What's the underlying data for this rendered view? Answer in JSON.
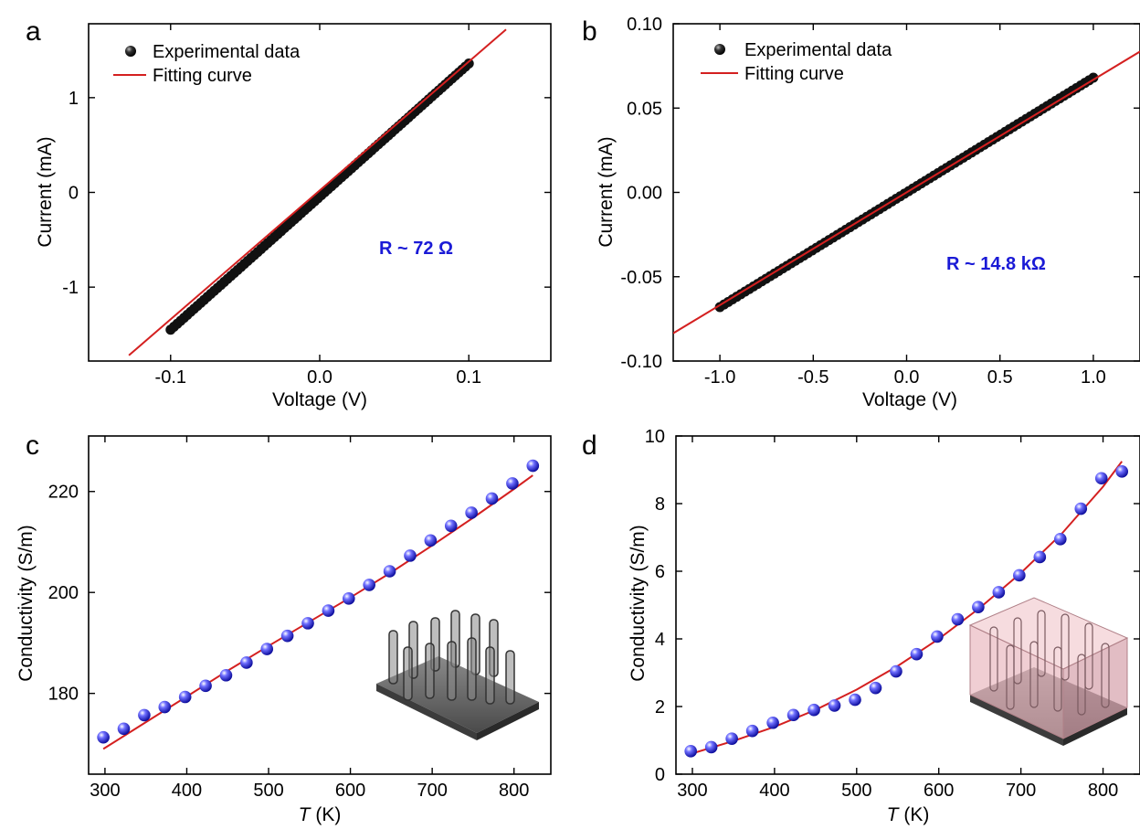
{
  "colors": {
    "fit_line": "#d42020",
    "exp_marker": "#111111",
    "sphere_marker": "#2222ee",
    "annotation": "#1a1ad6",
    "inset_substrate": "#5a5a5a",
    "inset_matrix": "#e8b4bc"
  },
  "chart_data": [
    {
      "panel": "a",
      "type": "scatter",
      "xlabel": "Voltage (V)",
      "ylabel": "Current (mA)",
      "xlim": [
        -0.155,
        0.155
      ],
      "ylim": [
        -1.78,
        1.78
      ],
      "xticks": [
        -0.1,
        0.0,
        0.1
      ],
      "xtick_labels": [
        "-0.1",
        "0.0",
        "0.1"
      ],
      "yticks": [
        -1,
        0,
        1
      ],
      "ytick_labels": [
        "-1",
        "0",
        "1"
      ],
      "legend": {
        "entries": [
          "Experimental data",
          "Fitting curve"
        ],
        "placement": "top-left"
      },
      "annotation": "R ~ 72 Ω",
      "series": [
        {
          "name": "Experimental data",
          "kind": "markers",
          "x_range": [
            -0.1,
            0.1
          ],
          "y_range": [
            -1.45,
            1.36
          ]
        },
        {
          "name": "Fitting curve",
          "kind": "line",
          "x": [
            -0.128,
            0.125
          ],
          "y": [
            -1.72,
            1.72
          ]
        }
      ]
    },
    {
      "panel": "b",
      "type": "scatter",
      "xlabel": "Voltage (V)",
      "ylabel": "Current (mA)",
      "xlim": [
        -1.25,
        1.25
      ],
      "ylim": [
        -0.1,
        0.1
      ],
      "xticks": [
        -1.0,
        -0.5,
        0.0,
        0.5,
        1.0
      ],
      "xtick_labels": [
        "-1.0",
        "-0.5",
        "0.0",
        "0.5",
        "1.0"
      ],
      "yticks": [
        -0.1,
        -0.05,
        0.0,
        0.05,
        0.1
      ],
      "ytick_labels": [
        "-0.10",
        "-0.05",
        "0.00",
        "0.05",
        "0.10"
      ],
      "legend": {
        "entries": [
          "Experimental data",
          "Fitting curve"
        ],
        "placement": "top-left"
      },
      "annotation": "R ~ 14.8 kΩ",
      "series": [
        {
          "name": "Experimental data",
          "kind": "markers",
          "x_range": [
            -1.0,
            1.0
          ],
          "y_range": [
            -0.068,
            0.068
          ]
        },
        {
          "name": "Fitting curve",
          "kind": "line",
          "x": [
            -1.25,
            1.25
          ],
          "y": [
            -0.0835,
            0.0835
          ]
        }
      ]
    },
    {
      "panel": "c",
      "type": "scatter",
      "xlabel": "T (K)",
      "ylabel": "Conductivity (S/m)",
      "xlim": [
        280,
        845
      ],
      "ylim": [
        164,
        231
      ],
      "xticks": [
        300,
        400,
        500,
        600,
        700,
        800
      ],
      "xtick_labels": [
        "300",
        "400",
        "500",
        "600",
        "700",
        "800"
      ],
      "yticks": [
        180,
        200,
        220
      ],
      "ytick_labels": [
        "180",
        "200",
        "220"
      ],
      "series": [
        {
          "name": "",
          "kind": "spheres",
          "x": [
            298,
            323,
            348,
            373,
            398,
            423,
            448,
            473,
            498,
            523,
            548,
            573,
            598,
            623,
            648,
            673,
            698,
            723,
            748,
            773,
            798,
            823
          ],
          "y": [
            171.3,
            173.0,
            175.7,
            177.3,
            179.3,
            181.5,
            183.6,
            186.1,
            188.8,
            191.4,
            193.9,
            196.4,
            198.8,
            201.5,
            204.2,
            207.3,
            210.3,
            213.2,
            215.8,
            218.6,
            221.6,
            225.1
          ]
        },
        {
          "name": "",
          "kind": "line",
          "x": [
            298,
            350,
            400,
            450,
            500,
            550,
            600,
            650,
            700,
            750,
            800,
            823
          ],
          "y": [
            169.0,
            174.3,
            179.4,
            184.5,
            189.4,
            194.2,
            199.0,
            204.0,
            209.3,
            214.8,
            220.5,
            223.2
          ]
        }
      ]
    },
    {
      "panel": "d",
      "type": "scatter",
      "xlabel": "T (K)",
      "ylabel": "Conductivity (S/m)",
      "xlim": [
        280,
        845
      ],
      "ylim": [
        0,
        10
      ],
      "xticks": [
        300,
        400,
        500,
        600,
        700,
        800
      ],
      "xtick_labels": [
        "300",
        "400",
        "500",
        "600",
        "700",
        "800"
      ],
      "yticks": [
        0,
        2,
        4,
        6,
        8,
        10
      ],
      "ytick_labels": [
        "0",
        "2",
        "4",
        "6",
        "8",
        "10"
      ],
      "series": [
        {
          "name": "",
          "kind": "spheres",
          "x": [
            298,
            323,
            348,
            373,
            398,
            423,
            448,
            473,
            498,
            523,
            548,
            573,
            598,
            623,
            648,
            673,
            698,
            723,
            748,
            773,
            798,
            823
          ],
          "y": [
            0.68,
            0.8,
            1.05,
            1.28,
            1.52,
            1.75,
            1.9,
            2.03,
            2.2,
            2.55,
            3.04,
            3.55,
            4.07,
            4.58,
            4.94,
            5.38,
            5.88,
            6.42,
            6.95,
            7.85,
            8.75,
            8.95
          ]
        },
        {
          "name": "",
          "kind": "line",
          "x": [
            298,
            350,
            400,
            450,
            500,
            550,
            600,
            650,
            700,
            750,
            800,
            823
          ],
          "y": [
            0.6,
            0.98,
            1.4,
            1.9,
            2.5,
            3.2,
            4.0,
            4.92,
            5.95,
            7.12,
            8.5,
            9.25
          ]
        }
      ]
    }
  ]
}
